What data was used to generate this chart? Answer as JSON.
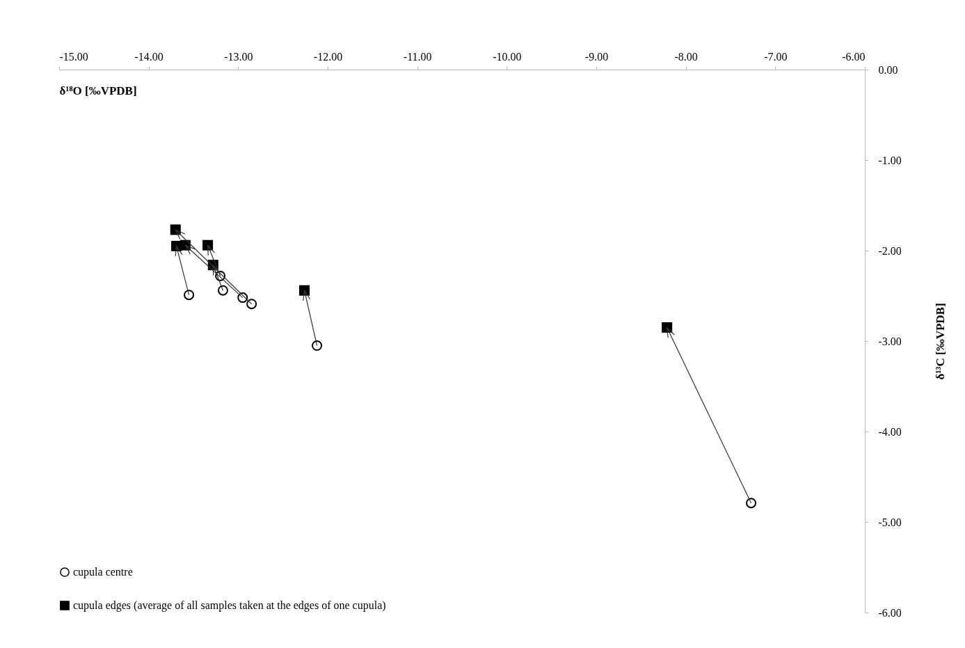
{
  "chart_data": {
    "type": "scatter",
    "xlabel": "δ¹⁸O [‰VPDB]",
    "ylabel": "δ¹³C [‰VPDB]",
    "series": [
      {
        "name": "cupula centre",
        "color": "#000000",
        "marker": "circle",
        "x": [
          -13.55,
          -13.2,
          -13.17,
          -12.95,
          -12.85,
          -12.12,
          -7.27
        ],
        "values": [
          -2.49,
          -2.28,
          -2.44,
          -2.52,
          -2.59,
          -3.05,
          -4.79
        ]
      },
      {
        "name": "cupula edges (average of all samples taken at the edges of one cupula)",
        "color": "#000000",
        "marker": "square",
        "x": [
          -13.69,
          -13.34,
          -13.28,
          -13.59,
          -13.7,
          -12.26,
          -8.21
        ],
        "values": [
          -1.95,
          -1.94,
          -2.16,
          -1.94,
          -1.77,
          -2.44,
          -2.85
        ]
      }
    ],
    "xlim": [
      -15,
      -6
    ],
    "xticks": [
      {
        "value": -15,
        "label": "-15.00"
      },
      {
        "value": -14,
        "label": "-14.00"
      },
      {
        "value": -13,
        "label": "-13.00"
      },
      {
        "value": -12,
        "label": "-12.00"
      },
      {
        "value": -11,
        "label": "-11.00"
      },
      {
        "value": -10,
        "label": "-10.00"
      },
      {
        "value": -9,
        "label": "-9.00"
      },
      {
        "value": -8,
        "label": "-8.00"
      },
      {
        "value": -7,
        "label": "-7.00"
      },
      {
        "value": -6,
        "label": "-6.00"
      }
    ],
    "ylim": [
      -6,
      0
    ],
    "yticks": [
      {
        "value": 0,
        "label": "0.00"
      },
      {
        "value": -1,
        "label": "-1.00"
      },
      {
        "value": -2,
        "label": "-2.00"
      },
      {
        "value": -3,
        "label": "-3.00"
      },
      {
        "value": -4,
        "label": "-4.00"
      },
      {
        "value": -5,
        "label": "-5.00"
      },
      {
        "value": -6,
        "label": "-6.00"
      }
    ],
    "grid": false,
    "legend": "bottom left"
  }
}
